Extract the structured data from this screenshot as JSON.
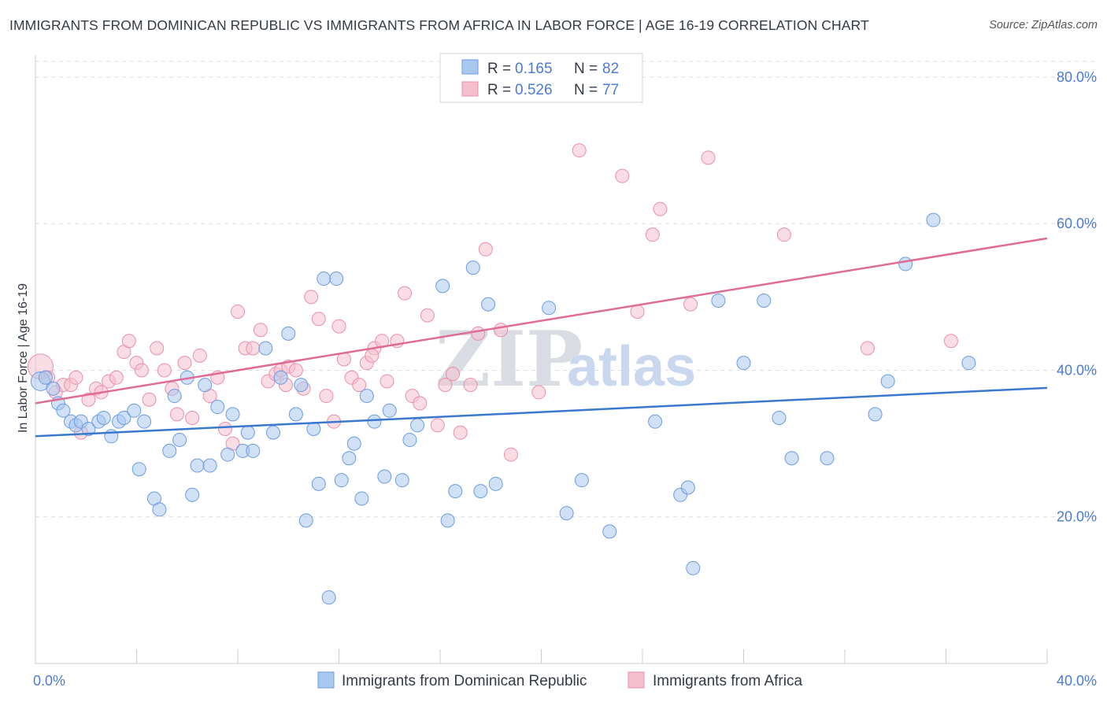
{
  "title": "IMMIGRANTS FROM DOMINICAN REPUBLIC VS IMMIGRANTS FROM AFRICA IN LABOR FORCE | AGE 16-19 CORRELATION CHART",
  "source": "Source: ZipAtlas.com",
  "watermark": {
    "zip": "ZIP",
    "atlas": "atlas"
  },
  "colors": {
    "blue_fill": "#a9c8ef",
    "blue_stroke": "#6b9be0",
    "blue_line": "#3a78d0",
    "pink_fill": "#f6bfd0",
    "pink_stroke": "#e88fab",
    "pink_line": "#e06b96",
    "grid": "#d8dde6",
    "tick_text": "#4a7bd0"
  },
  "legend": {
    "rows": [
      {
        "r_label": "R =",
        "r_value": "0.165",
        "n_label": "N =",
        "n_value": "82"
      },
      {
        "r_label": "R =",
        "r_value": "0.526",
        "n_label": "N =",
        "n_value": "77"
      }
    ]
  },
  "chart_data": {
    "type": "scatter",
    "title": "IMMIGRANTS FROM DOMINICAN REPUBLIC VS IMMIGRANTS FROM AFRICA IN LABOR FORCE | AGE 16-19 CORRELATION CHART",
    "xlabel": "",
    "ylabel": "In Labor Force | Age 16-19",
    "xlim": [
      0,
      40
    ],
    "ylim": [
      0,
      83
    ],
    "x_tick_labels": [
      "0.0%",
      "40.0%"
    ],
    "y_ticks": [
      20,
      40,
      60,
      80
    ],
    "y_tick_labels": [
      "20.0%",
      "40.0%",
      "60.0%",
      "80.0%"
    ],
    "grid": true,
    "legend_position": "top-center",
    "series": [
      {
        "name": "Immigrants from Dominican Republic",
        "color": "#6b9be0",
        "trend": {
          "x": [
            0,
            40
          ],
          "y": [
            31.0,
            37.6
          ]
        },
        "points": [
          [
            0.2,
            38.5
          ],
          [
            0.4,
            39.0
          ],
          [
            0.7,
            37.5
          ],
          [
            0.9,
            35.5
          ],
          [
            1.1,
            34.5
          ],
          [
            1.4,
            33.0
          ],
          [
            1.6,
            32.5
          ],
          [
            1.8,
            33.0
          ],
          [
            2.1,
            32.0
          ],
          [
            2.5,
            33.0
          ],
          [
            2.7,
            33.5
          ],
          [
            3.0,
            31.0
          ],
          [
            3.3,
            33.0
          ],
          [
            3.5,
            33.5
          ],
          [
            3.9,
            34.5
          ],
          [
            4.1,
            26.5
          ],
          [
            4.3,
            33.0
          ],
          [
            4.7,
            22.5
          ],
          [
            4.9,
            21.0
          ],
          [
            5.3,
            29.0
          ],
          [
            5.5,
            36.5
          ],
          [
            5.7,
            30.5
          ],
          [
            6.0,
            39.0
          ],
          [
            6.2,
            23.0
          ],
          [
            6.4,
            27.0
          ],
          [
            6.7,
            38.0
          ],
          [
            6.9,
            27.0
          ],
          [
            7.2,
            35.0
          ],
          [
            7.6,
            28.5
          ],
          [
            7.8,
            34.0
          ],
          [
            8.2,
            29.0
          ],
          [
            8.4,
            31.5
          ],
          [
            8.6,
            29.0
          ],
          [
            9.1,
            43.0
          ],
          [
            9.4,
            31.5
          ],
          [
            9.7,
            39.0
          ],
          [
            10.0,
            45.0
          ],
          [
            10.3,
            34.0
          ],
          [
            10.5,
            38.0
          ],
          [
            10.7,
            19.5
          ],
          [
            11.0,
            32.0
          ],
          [
            11.2,
            24.5
          ],
          [
            11.4,
            52.5
          ],
          [
            11.6,
            9.0
          ],
          [
            11.9,
            52.5
          ],
          [
            12.1,
            25.0
          ],
          [
            12.4,
            28.0
          ],
          [
            12.6,
            30.0
          ],
          [
            12.9,
            22.5
          ],
          [
            13.1,
            36.5
          ],
          [
            13.4,
            33.0
          ],
          [
            13.8,
            25.5
          ],
          [
            14.0,
            34.5
          ],
          [
            14.5,
            25.0
          ],
          [
            14.8,
            30.5
          ],
          [
            15.1,
            32.5
          ],
          [
            16.1,
            51.5
          ],
          [
            16.3,
            19.5
          ],
          [
            16.6,
            23.5
          ],
          [
            17.3,
            54.0
          ],
          [
            17.6,
            23.5
          ],
          [
            17.9,
            49.0
          ],
          [
            18.2,
            24.5
          ],
          [
            20.3,
            48.5
          ],
          [
            21.0,
            20.5
          ],
          [
            21.6,
            25.0
          ],
          [
            22.7,
            18.0
          ],
          [
            24.5,
            33.0
          ],
          [
            25.5,
            23.0
          ],
          [
            25.8,
            24.0
          ],
          [
            26.0,
            13.0
          ],
          [
            27.0,
            49.5
          ],
          [
            28.0,
            41.0
          ],
          [
            28.8,
            49.5
          ],
          [
            29.4,
            33.5
          ],
          [
            29.9,
            28.0
          ],
          [
            31.3,
            28.0
          ],
          [
            33.2,
            34.0
          ],
          [
            33.7,
            38.5
          ],
          [
            34.4,
            54.5
          ],
          [
            35.5,
            60.5
          ],
          [
            36.9,
            41.0
          ]
        ]
      },
      {
        "name": "Immigrants from Africa",
        "color": "#e88fab",
        "trend": {
          "x": [
            0,
            40
          ],
          "y": [
            35.5,
            58.0
          ]
        },
        "points": [
          [
            0.2,
            40.5
          ],
          [
            0.5,
            39.0
          ],
          [
            0.8,
            37.0
          ],
          [
            1.1,
            38.0
          ],
          [
            1.4,
            38.0
          ],
          [
            1.6,
            39.0
          ],
          [
            1.8,
            31.5
          ],
          [
            2.1,
            36.0
          ],
          [
            2.4,
            37.5
          ],
          [
            2.6,
            37.0
          ],
          [
            2.9,
            38.5
          ],
          [
            3.2,
            39.0
          ],
          [
            3.5,
            42.5
          ],
          [
            3.7,
            44.0
          ],
          [
            4.0,
            41.0
          ],
          [
            4.2,
            40.0
          ],
          [
            4.5,
            36.0
          ],
          [
            4.8,
            43.0
          ],
          [
            5.1,
            40.0
          ],
          [
            5.4,
            37.5
          ],
          [
            5.6,
            34.0
          ],
          [
            5.9,
            41.0
          ],
          [
            6.2,
            33.5
          ],
          [
            6.5,
            42.0
          ],
          [
            6.9,
            36.5
          ],
          [
            7.2,
            39.0
          ],
          [
            7.5,
            32.0
          ],
          [
            7.8,
            30.0
          ],
          [
            8.0,
            48.0
          ],
          [
            8.3,
            43.0
          ],
          [
            8.6,
            43.0
          ],
          [
            8.9,
            45.5
          ],
          [
            9.2,
            38.5
          ],
          [
            9.5,
            39.5
          ],
          [
            9.7,
            40.0
          ],
          [
            10.0,
            40.5
          ],
          [
            10.3,
            40.0
          ],
          [
            10.6,
            37.5
          ],
          [
            10.9,
            50.0
          ],
          [
            11.2,
            47.0
          ],
          [
            11.5,
            36.5
          ],
          [
            11.8,
            33.0
          ],
          [
            12.0,
            46.0
          ],
          [
            12.2,
            41.5
          ],
          [
            12.5,
            39.0
          ],
          [
            12.8,
            38.0
          ],
          [
            13.1,
            41.0
          ],
          [
            13.4,
            43.0
          ],
          [
            13.7,
            44.0
          ],
          [
            13.9,
            38.5
          ],
          [
            14.3,
            44.0
          ],
          [
            14.6,
            50.5
          ],
          [
            14.9,
            36.5
          ],
          [
            15.2,
            35.5
          ],
          [
            15.5,
            47.5
          ],
          [
            15.9,
            32.5
          ],
          [
            16.2,
            38.0
          ],
          [
            16.5,
            39.5
          ],
          [
            16.8,
            31.5
          ],
          [
            17.2,
            38.0
          ],
          [
            17.5,
            45.0
          ],
          [
            17.8,
            56.5
          ],
          [
            18.4,
            45.5
          ],
          [
            18.8,
            28.5
          ],
          [
            19.9,
            37.0
          ],
          [
            21.5,
            70.0
          ],
          [
            23.2,
            66.5
          ],
          [
            23.8,
            48.0
          ],
          [
            24.4,
            58.5
          ],
          [
            24.7,
            62.0
          ],
          [
            25.9,
            49.0
          ],
          [
            26.6,
            69.0
          ],
          [
            29.6,
            58.5
          ],
          [
            32.9,
            43.0
          ],
          [
            36.2,
            44.0
          ],
          [
            13.3,
            42.0
          ],
          [
            9.9,
            38.0
          ]
        ]
      }
    ]
  },
  "bottom_legend": [
    {
      "label": "Immigrants from Dominican Republic"
    },
    {
      "label": "Immigrants from Africa"
    }
  ]
}
